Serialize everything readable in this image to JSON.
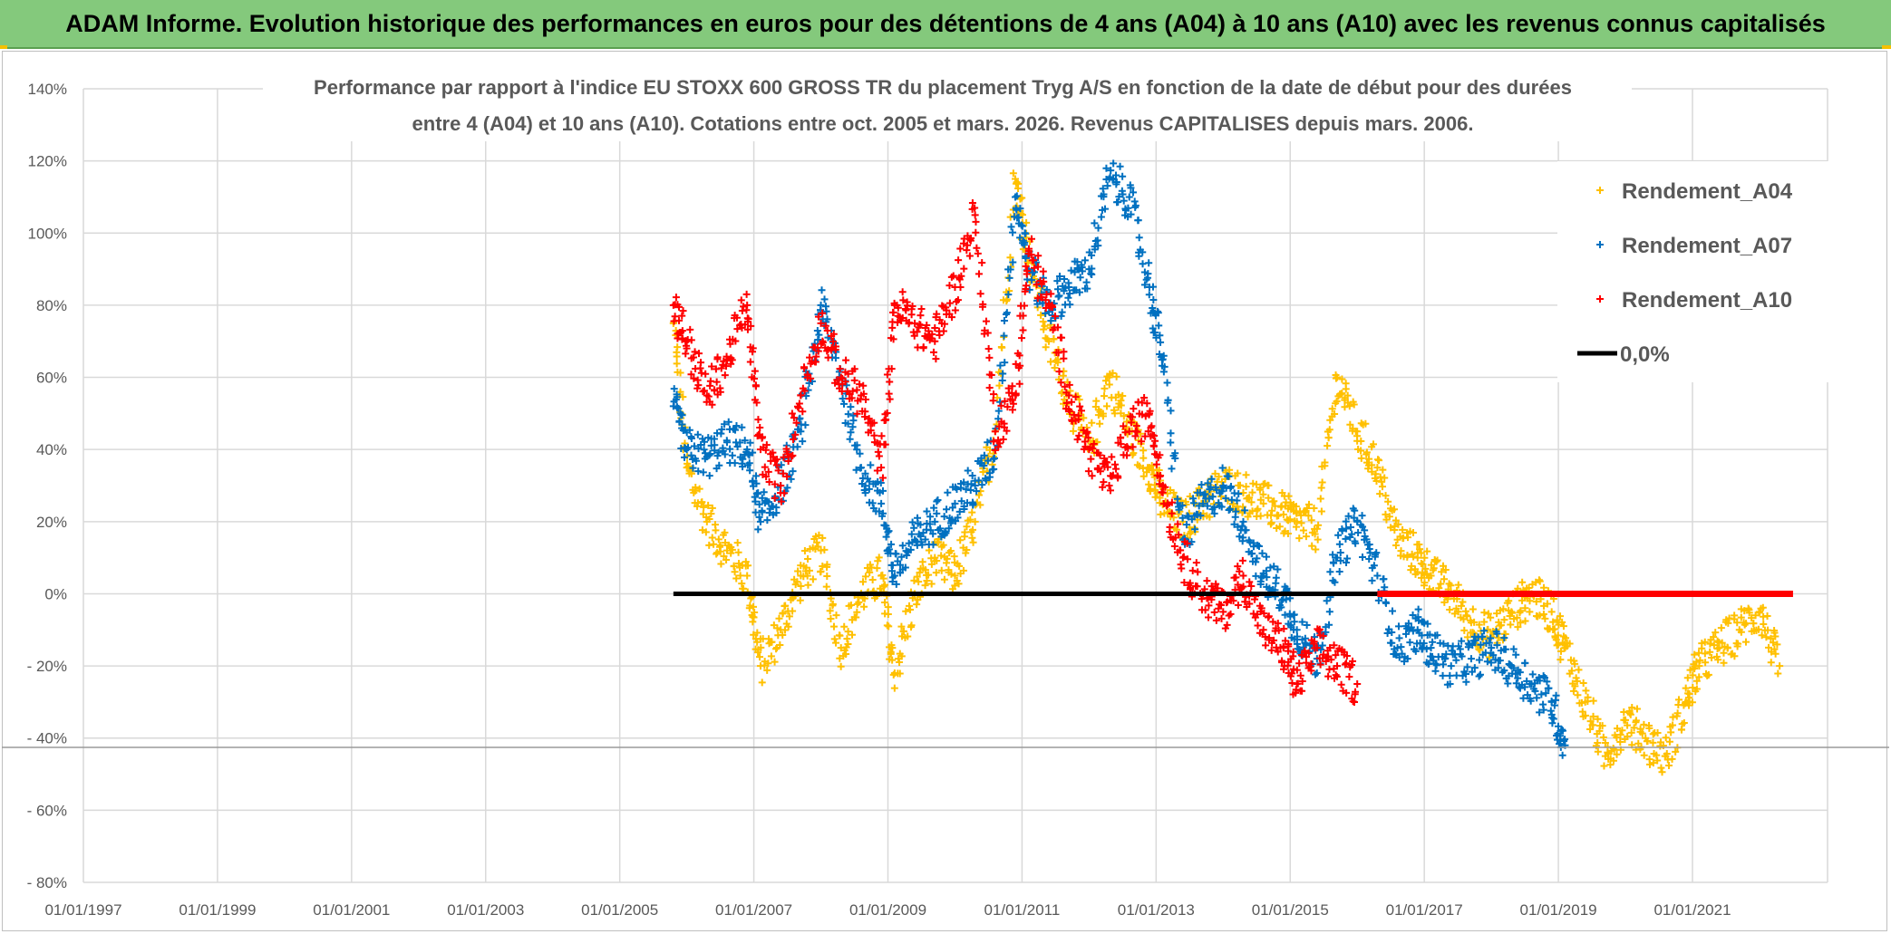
{
  "header": {
    "title": "ADAM Informe. Evolution historique des performances en euros pour des détentions de 4 ans (A04) à 10 ans (A10) avec les revenus connus capitalisés"
  },
  "colors": {
    "banner": "#84c97c",
    "A04": "#ffc000",
    "A07": "#0070c0",
    "A10": "#ff0000",
    "zero": "#000000"
  },
  "chart_data": {
    "type": "scatter",
    "title_lines": [
      "Performance par rapport à l'indice EU STOXX 600 GROSS TR  du placement Tryg A/S en fonction de la date de début pour des durées",
      "entre 4 (A04) et 10 ans (A10). Cotations entre oct. 2005 et mars. 2026. Revenus CAPITALISES depuis mars. 2006."
    ],
    "xlabel": "",
    "ylabel": "",
    "x_range": [
      1997.0,
      2022.0
    ],
    "ylim": [
      -80,
      140
    ],
    "y_ticks": [
      140,
      120,
      100,
      80,
      60,
      40,
      20,
      0,
      -20,
      -40,
      -60,
      -80
    ],
    "y_tick_labels": [
      "140%",
      "120%",
      "100%",
      "80%",
      "60%",
      "40%",
      "20%",
      "0%",
      "- 20%",
      "- 40%",
      "- 60%",
      "- 80%"
    ],
    "x_ticks": [
      1997,
      1999,
      2001,
      2003,
      2005,
      2007,
      2009,
      2011,
      2013,
      2015,
      2017,
      2019,
      2021
    ],
    "x_tick_labels": [
      "01/01/1997",
      "01/01/1999",
      "01/01/2001",
      "01/01/2003",
      "01/01/2005",
      "01/01/2007",
      "01/01/2009",
      "01/01/2011",
      "01/01/2013",
      "01/01/2015",
      "01/01/2017",
      "01/01/2019",
      "01/01/2021"
    ],
    "grid": true,
    "legend_position": "top-right",
    "legend": [
      "Rendement_A04",
      "Rendement_A07",
      "Rendement_A10",
      "0,0%"
    ],
    "series": [
      {
        "name": "Rendement_A04",
        "x": [
          2005.8,
          2006.0,
          2006.3,
          2006.6,
          2006.9,
          2007.1,
          2007.4,
          2007.7,
          2008.0,
          2008.3,
          2008.6,
          2008.9,
          2009.1,
          2009.4,
          2009.7,
          2010.0,
          2010.3,
          2010.6,
          2010.9,
          2011.1,
          2011.4,
          2011.7,
          2012.0,
          2012.3,
          2012.6,
          2012.9,
          2013.1,
          2013.4,
          2013.7,
          2014.0,
          2014.3,
          2014.6,
          2014.9,
          2015.1,
          2015.4,
          2015.7,
          2016.0,
          2016.3,
          2016.6,
          2016.9,
          2017.1,
          2017.4,
          2017.7,
          2018.0,
          2018.3,
          2018.6,
          2018.9,
          2019.1,
          2019.4,
          2019.7,
          2020.0,
          2020.3,
          2020.6,
          2020.9,
          2021.1,
          2021.4,
          2021.7,
          2022.0,
          2022.3
        ],
        "y": [
          75,
          35,
          20,
          12,
          5,
          -20,
          -10,
          5,
          12,
          -15,
          0,
          5,
          -22,
          0,
          10,
          5,
          20,
          45,
          115,
          95,
          70,
          55,
          40,
          60,
          45,
          35,
          25,
          20,
          25,
          30,
          28,
          25,
          22,
          20,
          18,
          60,
          45,
          35,
          15,
          10,
          5,
          0,
          -8,
          -12,
          -5,
          0,
          -5,
          -15,
          -30,
          -45,
          -35,
          -40,
          -45,
          -30,
          -20,
          -15,
          -10,
          -5,
          -20
        ]
      },
      {
        "name": "Rendement_A07",
        "x": [
          2005.8,
          2006.0,
          2006.3,
          2006.6,
          2006.9,
          2007.1,
          2007.4,
          2007.7,
          2008.0,
          2008.3,
          2008.6,
          2008.9,
          2009.1,
          2009.4,
          2009.7,
          2010.0,
          2010.3,
          2010.6,
          2010.9,
          2011.1,
          2011.4,
          2011.7,
          2012.0,
          2012.3,
          2012.6,
          2012.9,
          2013.1,
          2013.4,
          2013.7,
          2014.0,
          2014.3,
          2014.6,
          2014.9,
          2015.1,
          2015.4,
          2015.7,
          2016.0,
          2016.3,
          2016.6,
          2016.9,
          2017.1,
          2017.4,
          2017.7,
          2018.0,
          2018.3,
          2018.6,
          2018.9,
          2019.1
        ],
        "y": [
          52,
          40,
          38,
          42,
          40,
          20,
          30,
          45,
          80,
          60,
          35,
          25,
          5,
          15,
          20,
          25,
          30,
          40,
          110,
          90,
          80,
          85,
          90,
          115,
          110,
          85,
          65,
          15,
          25,
          30,
          20,
          5,
          0,
          -10,
          -18,
          10,
          20,
          5,
          -15,
          -10,
          -15,
          -20,
          -18,
          -15,
          -20,
          -25,
          -30,
          -42
        ]
      },
      {
        "name": "Rendement_A10",
        "x": [
          2005.8,
          2006.0,
          2006.3,
          2006.6,
          2006.9,
          2007.1,
          2007.4,
          2007.7,
          2008.0,
          2008.3,
          2008.6,
          2008.9,
          2009.1,
          2009.4,
          2009.7,
          2010.0,
          2010.3,
          2010.6,
          2010.9,
          2011.1,
          2011.4,
          2011.7,
          2012.0,
          2012.3,
          2012.6,
          2012.9,
          2013.1,
          2013.4,
          2013.7,
          2014.0,
          2014.3,
          2014.6,
          2014.9,
          2015.1,
          2015.4,
          2015.7,
          2016.0
        ],
        "y": [
          80,
          70,
          55,
          65,
          80,
          40,
          30,
          55,
          75,
          60,
          55,
          35,
          80,
          75,
          70,
          85,
          105,
          45,
          55,
          95,
          80,
          55,
          40,
          30,
          45,
          50,
          30,
          10,
          0,
          -5,
          5,
          -10,
          -15,
          -25,
          -15,
          -20,
          -25
        ]
      },
      {
        "name": "Rendement_A10 (0,0% segment)",
        "x": [
          2016.3,
          2022.5
        ],
        "y": [
          0,
          0
        ]
      },
      {
        "name": "0,0%",
        "x": [
          2005.8,
          2016.3
        ],
        "y": [
          0,
          0
        ]
      }
    ]
  }
}
